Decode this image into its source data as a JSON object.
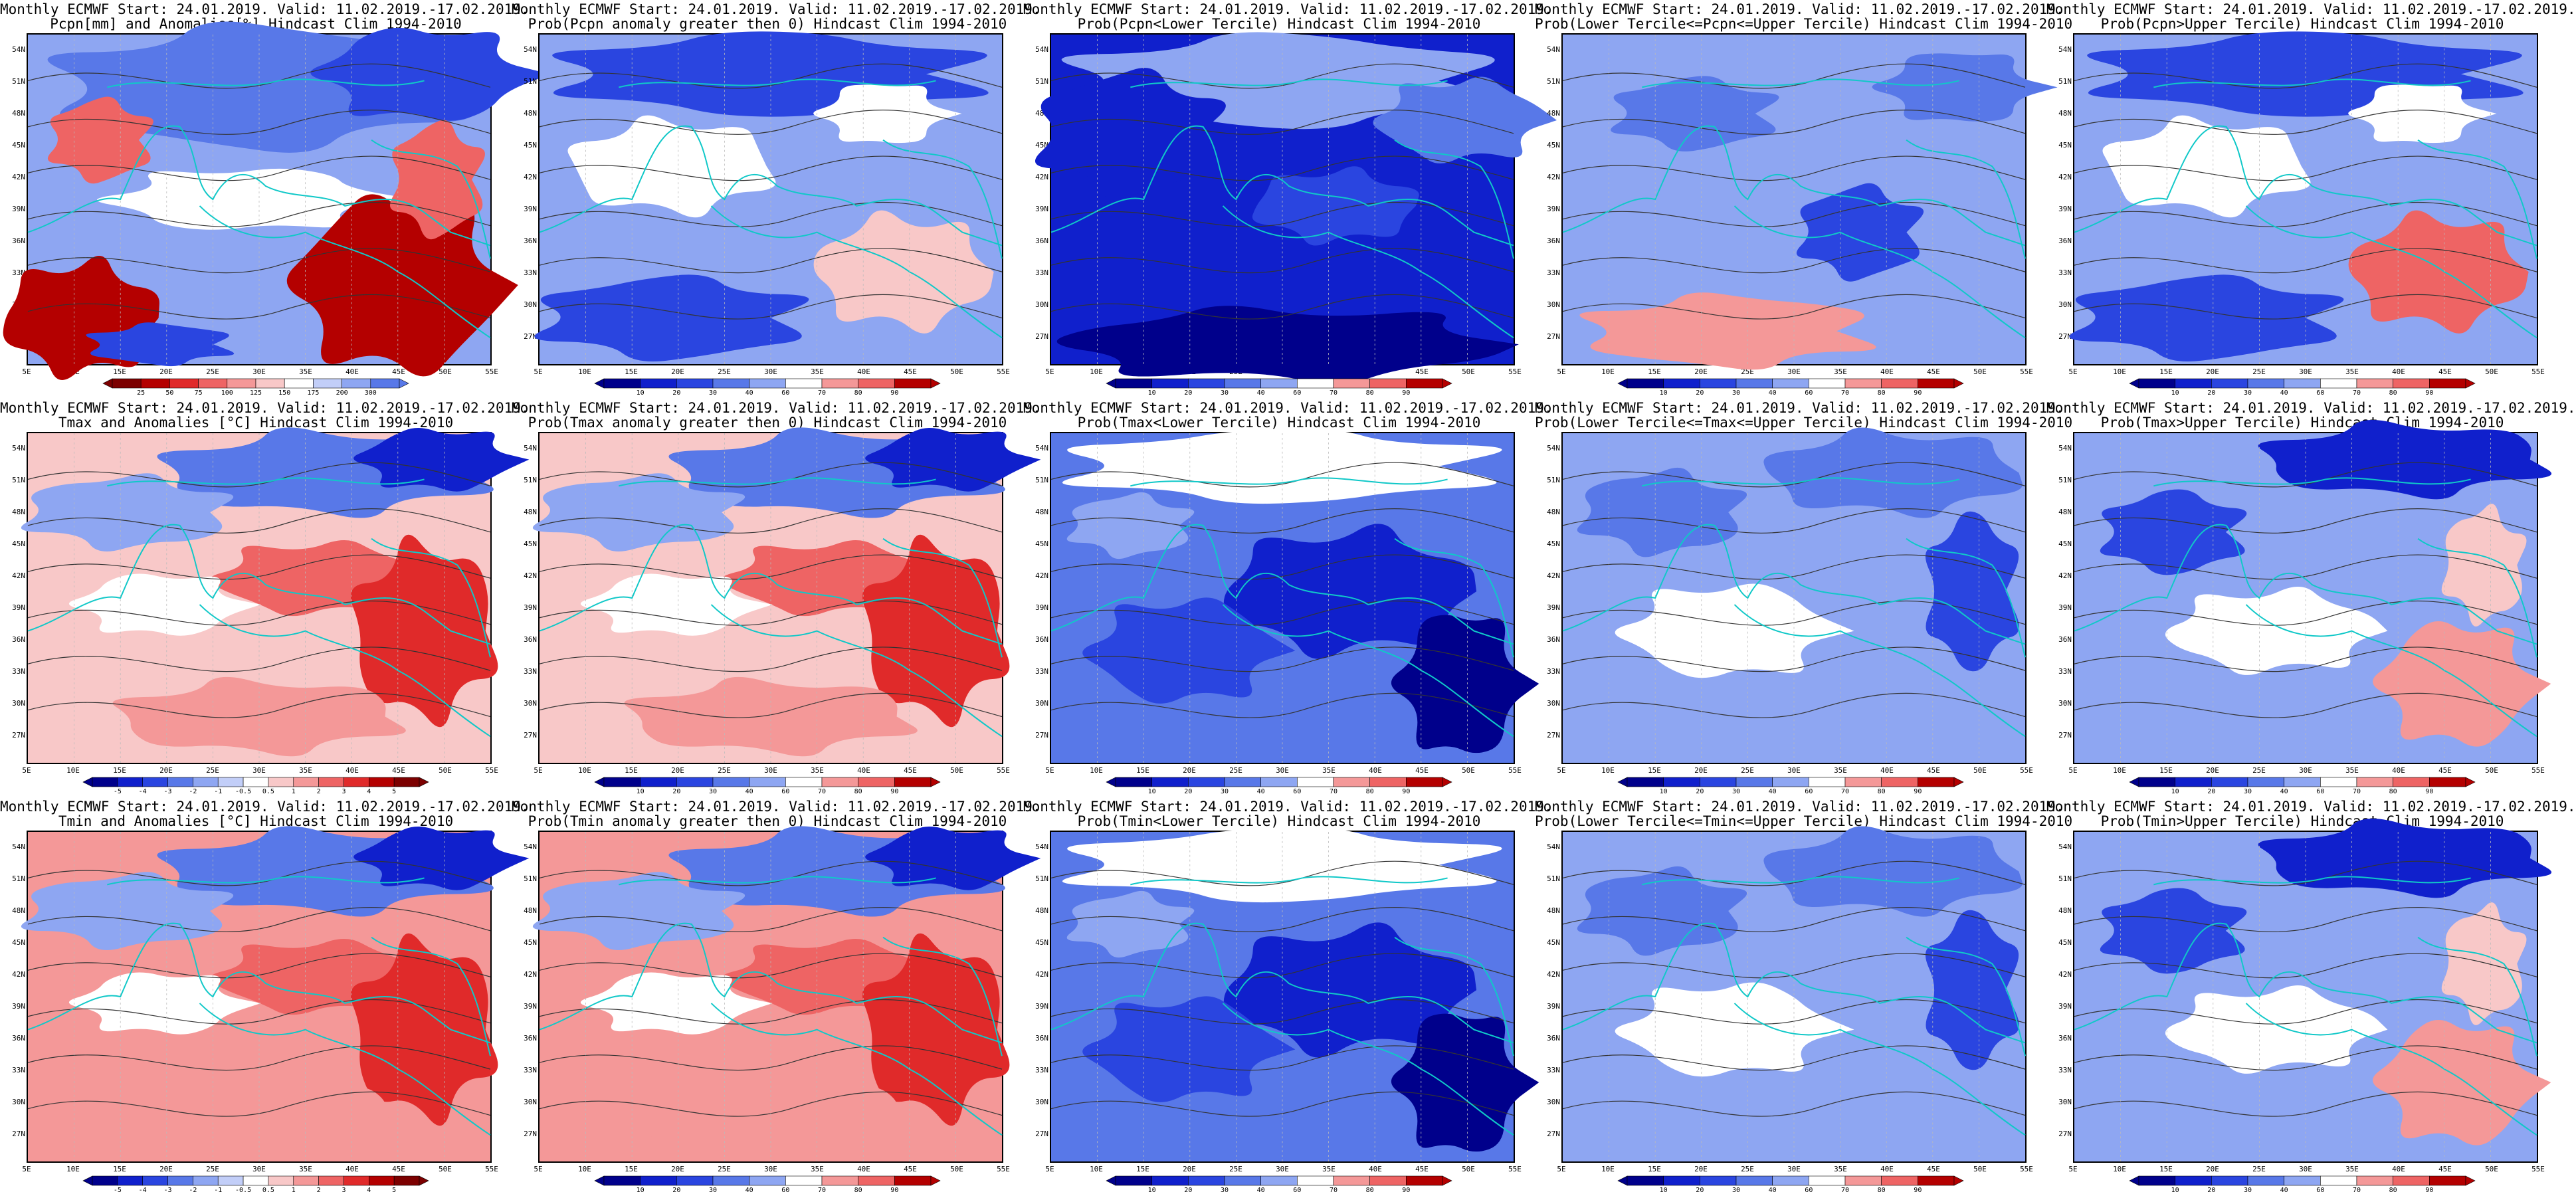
{
  "lat_labels": [
    "54N",
    "51N",
    "48N",
    "45N",
    "42N",
    "39N",
    "36N",
    "33N",
    "30N",
    "27N"
  ],
  "lon_labels": [
    "5E",
    "10E",
    "15E",
    "20E",
    "25E",
    "30E",
    "35E",
    "40E",
    "45E",
    "50E",
    "55E"
  ],
  "colors": {
    "blue": [
      "#00008b",
      "#1020cc",
      "#2a45e0",
      "#5878e8",
      "#8ea6f2",
      "#c2cef8"
    ],
    "red": [
      "#f8c8c8",
      "#f49898",
      "#ee6464",
      "#e02a2a",
      "#b40000",
      "#7c0000"
    ],
    "neutral": "#ffffff",
    "coast": "#10c8c8",
    "contour": "#333333"
  },
  "panels": [
    {
      "title1": "Monthly ECMWF Start: 24.01.2019. Valid: 11.02.2019.-17.02.2019.",
      "title2": "Pcpn[mm] and Anomalies[%] Hindcast Clim 1994-2010",
      "cb_labels": [
        "25",
        "50",
        "75",
        "100",
        "125",
        "150",
        "175",
        "200",
        "300"
      ],
      "scheme": "pcpn"
    },
    {
      "title1": "Monthly ECMWF Start: 24.01.2019. Valid: 11.02.2019.-17.02.2019.",
      "title2": "Prob(Pcpn anomaly greater then 0) Hindcast Clim 1994-2010",
      "cb_labels": [
        "10",
        "20",
        "30",
        "40",
        "60",
        "70",
        "80",
        "90"
      ],
      "scheme": "prob_pcpn"
    },
    {
      "title1": "Monthly ECMWF Start: 24.01.2019. Valid: 11.02.2019.-17.02.2019.",
      "title2": "Prob(Pcpn<Lower Tercile) Hindcast Clim 1994-2010",
      "cb_labels": [
        "10",
        "20",
        "30",
        "40",
        "60",
        "70",
        "80",
        "90"
      ],
      "scheme": "lower_pcpn"
    },
    {
      "title1": "Monthly ECMWF Start: 24.01.2019. Valid: 11.02.2019.-17.02.2019.",
      "title2": "Prob(Lower Tercile<=Pcpn<=Upper Tercile) Hindcast Clim 1994-2010",
      "cb_labels": [
        "10",
        "20",
        "30",
        "40",
        "60",
        "70",
        "80",
        "90"
      ],
      "scheme": "mid_pcpn"
    },
    {
      "title1": "Monthly ECMWF Start: 24.01.2019. Valid: 11.02.2019.-17.02.2019.",
      "title2": "Prob(Pcpn>Upper Tercile) Hindcast Clim 1994-2010",
      "cb_labels": [
        "10",
        "20",
        "30",
        "40",
        "60",
        "70",
        "80",
        "90"
      ],
      "scheme": "upper_pcpn"
    },
    {
      "title1": "Monthly ECMWF Start: 24.01.2019. Valid: 11.02.2019.-17.02.2019.",
      "title2": "Tmax and Anomalies [°C] Hindcast Clim 1994-2010",
      "cb_labels": [
        "-5",
        "-4",
        "-3",
        "-2",
        "-1",
        "-0.5",
        "0.5",
        "1",
        "2",
        "3",
        "4",
        "5"
      ],
      "scheme": "tmax"
    },
    {
      "title1": "Monthly ECMWF Start: 24.01.2019. Valid: 11.02.2019.-17.02.2019.",
      "title2": "Prob(Tmax anomaly greater then 0) Hindcast Clim 1994-2010",
      "cb_labels": [
        "10",
        "20",
        "30",
        "40",
        "60",
        "70",
        "80",
        "90"
      ],
      "scheme": "prob_tmax"
    },
    {
      "title1": "Monthly ECMWF Start: 24.01.2019. Valid: 11.02.2019.-17.02.2019.",
      "title2": "Prob(Tmax<Lower Tercile) Hindcast Clim 1994-2010",
      "cb_labels": [
        "10",
        "20",
        "30",
        "40",
        "60",
        "70",
        "80",
        "90"
      ],
      "scheme": "lower_tmax"
    },
    {
      "title1": "Monthly ECMWF Start: 24.01.2019. Valid: 11.02.2019.-17.02.2019.",
      "title2": "Prob(Lower Tercile<=Tmax<=Upper Tercile) Hindcast Clim 1994-2010",
      "cb_labels": [
        "10",
        "20",
        "30",
        "40",
        "60",
        "70",
        "80",
        "90"
      ],
      "scheme": "mid_tmax"
    },
    {
      "title1": "Monthly ECMWF Start: 24.01.2019. Valid: 11.02.2019.-17.02.2019.",
      "title2": "Prob(Tmax>Upper Tercile) Hindcast Clim 1994-2010",
      "cb_labels": [
        "10",
        "20",
        "30",
        "40",
        "60",
        "70",
        "80",
        "90"
      ],
      "scheme": "upper_tmax"
    },
    {
      "title1": "Monthly ECMWF Start: 24.01.2019. Valid: 11.02.2019.-17.02.2019.",
      "title2": "Tmin and Anomalies [°C] Hindcast Clim 1994-2010",
      "cb_labels": [
        "-5",
        "-4",
        "-3",
        "-2",
        "-1",
        "-0.5",
        "0.5",
        "1",
        "2",
        "3",
        "4",
        "5"
      ],
      "scheme": "tmin"
    },
    {
      "title1": "Monthly ECMWF Start: 24.01.2019. Valid: 11.02.2019.-17.02.2019.",
      "title2": "Prob(Tmin anomaly greater then 0) Hindcast Clim 1994-2010",
      "cb_labels": [
        "10",
        "20",
        "30",
        "40",
        "60",
        "70",
        "80",
        "90"
      ],
      "scheme": "prob_tmin"
    },
    {
      "title1": "Monthly ECMWF Start: 24.01.2019. Valid: 11.02.2019.-17.02.2019.",
      "title2": "Prob(Tmin<Lower Tercile) Hindcast Clim 1994-2010",
      "cb_labels": [
        "10",
        "20",
        "30",
        "40",
        "60",
        "70",
        "80",
        "90"
      ],
      "scheme": "lower_tmin"
    },
    {
      "title1": "Monthly ECMWF Start: 24.01.2019. Valid: 11.02.2019.-17.02.2019.",
      "title2": "Prob(Lower Tercile<=Tmin<=Upper Tercile) Hindcast Clim 1994-2010",
      "cb_labels": [
        "10",
        "20",
        "30",
        "40",
        "60",
        "70",
        "80",
        "90"
      ],
      "scheme": "mid_tmin"
    },
    {
      "title1": "Monthly ECMWF Start: 24.01.2019. Valid: 11.02.2019.-17.02.2019.",
      "title2": "Prob(Tmin>Upper Tercile) Hindcast Clim 1994-2010",
      "cb_labels": [
        "10",
        "20",
        "30",
        "40",
        "60",
        "70",
        "80",
        "90"
      ],
      "scheme": "upper_tmin"
    }
  ]
}
